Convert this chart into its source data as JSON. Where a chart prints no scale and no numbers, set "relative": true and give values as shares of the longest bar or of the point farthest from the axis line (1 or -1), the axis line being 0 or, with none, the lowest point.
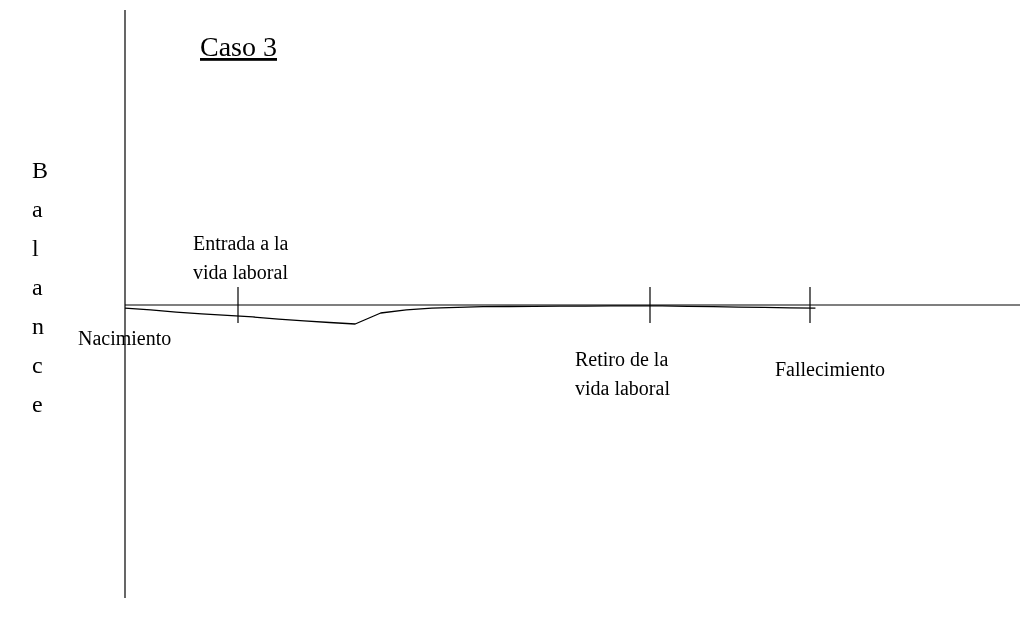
{
  "chart_data": {
    "type": "line",
    "title": "Caso 3",
    "ylabel": "Balance",
    "relative": true,
    "marker": "none",
    "line_style": "solid",
    "annotations": [
      "Nacimiento",
      "Entrada a la vida laboral",
      "Retiro de la vida laboral",
      "Fallecimiento"
    ],
    "categories": [
      null,
      null,
      null,
      null,
      null,
      null,
      null,
      null,
      null,
      null,
      null,
      null,
      null,
      null,
      null,
      null,
      null,
      null,
      null,
      null,
      null,
      null,
      null,
      null,
      null,
      null,
      null,
      null,
      null,
      null,
      null,
      null,
      null,
      null,
      null,
      null
    ],
    "series": [
      {
        "color": "#000000",
        "values": [
          -0.16,
          -0.26,
          -0.37,
          -0.47,
          -0.55,
          -0.63,
          -0.74,
          -0.84,
          -0.92,
          -1,
          -0.42,
          -0.26,
          -0.16,
          -0.12,
          -0.09,
          -0.08,
          -0.07,
          -0.06,
          -0.06,
          -0.05,
          -0.05,
          -0.05,
          -0.07,
          -0.09,
          -0.11,
          -0.13,
          -0.15,
          -0.16,
          null,
          null,
          null,
          null,
          null,
          null,
          null,
          null
        ]
      }
    ]
  }
}
